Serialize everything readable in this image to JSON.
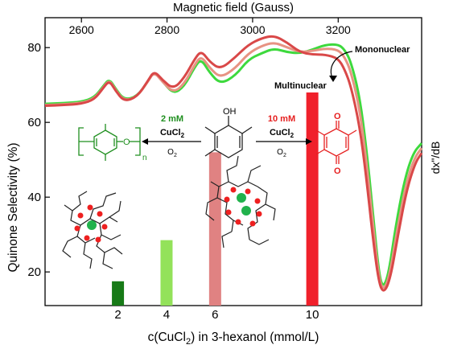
{
  "chart_data": {
    "type": "bar",
    "top_axis": {
      "label": "Magnetic field (Gauss)",
      "ticks": [
        2600,
        2800,
        3000,
        3200
      ],
      "range": [
        2515,
        3395
      ]
    },
    "x_axis": {
      "label": "c(CuCl",
      "label_sub": "2",
      "label_tail": ") in 3-hexanol (mmol/L)",
      "ticks": [
        2,
        4,
        6,
        10
      ],
      "range": [
        -1,
        14.5
      ]
    },
    "y_axis": {
      "label": "Quinone Selectivity (%)",
      "ticks": [
        20,
        40,
        60,
        80
      ],
      "range": [
        11,
        88
      ]
    },
    "right_axis": {
      "label": "dx\"/dB"
    },
    "bars": [
      {
        "x": 2,
        "value": 17.5,
        "color": "#177a17"
      },
      {
        "x": 4,
        "value": 28.5,
        "color": "#93e25a"
      },
      {
        "x": 6,
        "value": 52,
        "color": "#e08282"
      },
      {
        "x": 10,
        "value": 68,
        "color": "#f0202b"
      }
    ],
    "epr_series": [
      {
        "name": "Mononuclear",
        "color": "#3dd93d",
        "points": [
          [
            2515,
            37
          ],
          [
            2560,
            37.3
          ],
          [
            2600,
            37.8
          ],
          [
            2630,
            39.5
          ],
          [
            2650,
            44
          ],
          [
            2665,
            47.2
          ],
          [
            2680,
            43
          ],
          [
            2700,
            38.6
          ],
          [
            2730,
            40
          ],
          [
            2755,
            46
          ],
          [
            2770,
            50.3
          ],
          [
            2790,
            46
          ],
          [
            2815,
            41
          ],
          [
            2840,
            44
          ],
          [
            2865,
            52
          ],
          [
            2880,
            55.3
          ],
          [
            2900,
            49.5
          ],
          [
            2925,
            45
          ],
          [
            2960,
            48.5
          ],
          [
            2990,
            55
          ],
          [
            3020,
            57.5
          ],
          [
            3050,
            59.5
          ],
          [
            3080,
            58
          ],
          [
            3110,
            57.5
          ],
          [
            3140,
            59
          ],
          [
            3170,
            61
          ],
          [
            3200,
            61.2
          ],
          [
            3215,
            59
          ],
          [
            3230,
            54
          ],
          [
            3250,
            40
          ],
          [
            3265,
            20
          ],
          [
            3280,
            -5
          ],
          [
            3295,
            -32
          ],
          [
            3305,
            -38
          ],
          [
            3318,
            -32
          ],
          [
            3335,
            -12
          ],
          [
            3355,
            6
          ],
          [
            3375,
            17
          ],
          [
            3395,
            21
          ]
        ]
      },
      {
        "name": "",
        "color": "#e79383",
        "points": [
          [
            2515,
            36.5
          ],
          [
            2560,
            36.8
          ],
          [
            2600,
            37.3
          ],
          [
            2630,
            39
          ],
          [
            2650,
            43.5
          ],
          [
            2665,
            46.8
          ],
          [
            2680,
            42.5
          ],
          [
            2700,
            38.2
          ],
          [
            2730,
            39.8
          ],
          [
            2755,
            46
          ],
          [
            2770,
            50
          ],
          [
            2790,
            45.8
          ],
          [
            2815,
            41.5
          ],
          [
            2840,
            45
          ],
          [
            2865,
            53
          ],
          [
            2880,
            56.5
          ],
          [
            2900,
            51.5
          ],
          [
            2925,
            47.5
          ],
          [
            2960,
            51.5
          ],
          [
            2990,
            57.5
          ],
          [
            3020,
            60.5
          ],
          [
            3050,
            62
          ],
          [
            3080,
            60
          ],
          [
            3110,
            58
          ],
          [
            3140,
            58.5
          ],
          [
            3170,
            59.5
          ],
          [
            3200,
            59
          ],
          [
            3215,
            56
          ],
          [
            3230,
            50
          ],
          [
            3250,
            35
          ],
          [
            3265,
            15
          ],
          [
            3280,
            -10
          ],
          [
            3295,
            -34
          ],
          [
            3306,
            -39
          ],
          [
            3320,
            -33
          ],
          [
            3338,
            -14
          ],
          [
            3358,
            4
          ],
          [
            3378,
            15
          ],
          [
            3395,
            19
          ]
        ]
      },
      {
        "name": "Multinuclear",
        "color": "#d94848",
        "points": [
          [
            2515,
            36.2
          ],
          [
            2560,
            36.5
          ],
          [
            2600,
            37
          ],
          [
            2630,
            38.7
          ],
          [
            2650,
            43.2
          ],
          [
            2665,
            46.5
          ],
          [
            2680,
            42.2
          ],
          [
            2700,
            37.9
          ],
          [
            2730,
            39.8
          ],
          [
            2755,
            46.2
          ],
          [
            2770,
            50.5
          ],
          [
            2790,
            46.5
          ],
          [
            2815,
            43
          ],
          [
            2840,
            47.5
          ],
          [
            2865,
            55.3
          ],
          [
            2880,
            58.6
          ],
          [
            2900,
            54
          ],
          [
            2925,
            51
          ],
          [
            2960,
            56
          ],
          [
            2990,
            61
          ],
          [
            3020,
            63.6
          ],
          [
            3050,
            64.8
          ],
          [
            3080,
            62
          ],
          [
            3110,
            58
          ],
          [
            3140,
            57
          ],
          [
            3170,
            57
          ],
          [
            3200,
            55.5
          ],
          [
            3215,
            51
          ],
          [
            3230,
            44
          ],
          [
            3250,
            28
          ],
          [
            3265,
            8
          ],
          [
            3280,
            -16
          ],
          [
            3295,
            -36
          ],
          [
            3307,
            -40
          ],
          [
            3322,
            -34
          ],
          [
            3340,
            -16
          ],
          [
            3360,
            2
          ],
          [
            3380,
            13
          ],
          [
            3395,
            17
          ]
        ]
      }
    ],
    "annotations": {
      "mononuclear": "Mononuclear",
      "multinuclear": "Multinuclear",
      "left_conc": "2 mM",
      "left_salt": "CuCl",
      "left_salt_sub": "2",
      "left_o2": "O",
      "left_o2_sub": "2",
      "right_conc": "10 mM",
      "right_salt": "CuCl",
      "right_salt_sub": "2",
      "right_o2": "O",
      "right_o2_sub": "2",
      "oh": "OH",
      "o_top": "O",
      "o_bottom": "O",
      "o_polymer": "O",
      "n_sub": "n"
    },
    "colors": {
      "green_text": "#1f8f1f",
      "red_text": "#e62020",
      "green_cluster": "#21b24c",
      "red_cluster": "#ee2020"
    },
    "grid": false,
    "legend": "none"
  }
}
